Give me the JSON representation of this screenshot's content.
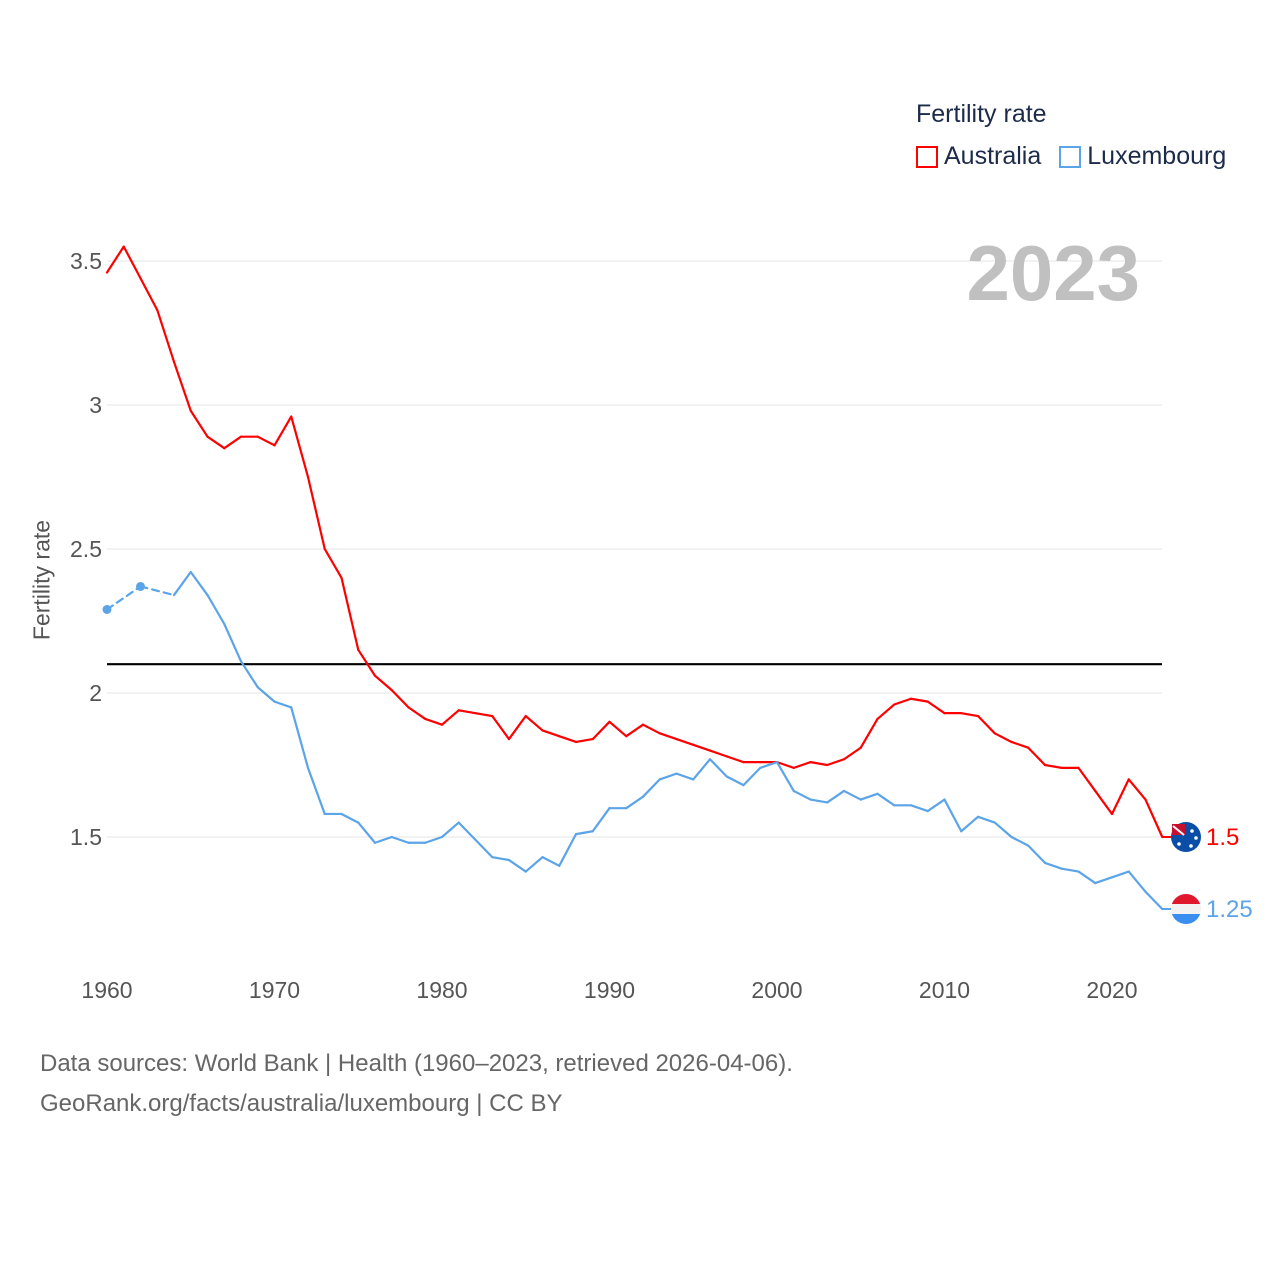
{
  "chart_data": {
    "type": "line",
    "title": "Fertility rate",
    "ylabel": "Fertility rate",
    "xlabel": "",
    "current_year": "2023",
    "xlim": [
      1960,
      2023
    ],
    "ylim": [
      1.15,
      3.6
    ],
    "x_ticks": [
      1960,
      1970,
      1980,
      1990,
      2000,
      2010,
      2020
    ],
    "y_ticks": [
      1.5,
      2,
      2.5,
      3,
      3.5
    ],
    "y_tick_labels": [
      "1.5",
      "2",
      "2.5",
      "3",
      "3.5"
    ],
    "grid": true,
    "legend_position": "top-right",
    "reference_line": 2.1,
    "reference_color": "#000000",
    "x": [
      1960,
      1961,
      1962,
      1963,
      1964,
      1965,
      1966,
      1967,
      1968,
      1969,
      1970,
      1971,
      1972,
      1973,
      1974,
      1975,
      1976,
      1977,
      1978,
      1979,
      1980,
      1981,
      1982,
      1983,
      1984,
      1985,
      1986,
      1987,
      1988,
      1989,
      1990,
      1991,
      1992,
      1993,
      1994,
      1995,
      1996,
      1997,
      1998,
      1999,
      2000,
      2001,
      2002,
      2003,
      2004,
      2005,
      2006,
      2007,
      2008,
      2009,
      2010,
      2011,
      2012,
      2013,
      2014,
      2015,
      2016,
      2017,
      2018,
      2019,
      2020,
      2021,
      2022,
      2023
    ],
    "series": [
      {
        "name": "Australia",
        "color": "#ff0000",
        "end_label": "1.5",
        "flag": "australia-flag",
        "values": [
          3.46,
          3.55,
          3.44,
          3.33,
          3.15,
          2.98,
          2.89,
          2.85,
          2.89,
          2.89,
          2.86,
          2.96,
          2.75,
          2.5,
          2.4,
          2.15,
          2.06,
          2.01,
          1.95,
          1.91,
          1.89,
          1.94,
          1.93,
          1.92,
          1.84,
          1.92,
          1.87,
          1.85,
          1.83,
          1.84,
          1.9,
          1.85,
          1.89,
          1.86,
          1.84,
          1.82,
          1.8,
          1.78,
          1.76,
          1.76,
          1.76,
          1.74,
          1.76,
          1.75,
          1.77,
          1.81,
          1.91,
          1.96,
          1.98,
          1.97,
          1.93,
          1.93,
          1.92,
          1.86,
          1.83,
          1.81,
          1.75,
          1.74,
          1.74,
          1.66,
          1.58,
          1.7,
          1.63,
          1.5
        ]
      },
      {
        "name": "Luxembourg",
        "color": "#5ba4e8",
        "end_label": "1.25",
        "flag": "luxembourg-flag",
        "values": [
          2.29,
          null,
          2.37,
          null,
          2.34,
          2.42,
          2.34,
          2.24,
          2.11,
          2.02,
          1.97,
          1.95,
          1.74,
          1.58,
          1.58,
          1.55,
          1.48,
          1.5,
          1.48,
          1.48,
          1.5,
          1.55,
          1.49,
          1.43,
          1.42,
          1.38,
          1.43,
          1.4,
          1.51,
          1.52,
          1.6,
          1.6,
          1.64,
          1.7,
          1.72,
          1.7,
          1.77,
          1.71,
          1.68,
          1.74,
          1.76,
          1.66,
          1.63,
          1.62,
          1.66,
          1.63,
          1.65,
          1.61,
          1.61,
          1.59,
          1.63,
          1.52,
          1.57,
          1.55,
          1.5,
          1.47,
          1.41,
          1.39,
          1.38,
          1.34,
          1.36,
          1.38,
          1.31,
          1.25
        ]
      }
    ]
  },
  "footer": {
    "line1": "Data sources: World Bank | Health (1960–2023, retrieved 2026-04-06).",
    "line2": "GeoRank.org/facts/australia/luxembourg | CC BY"
  }
}
